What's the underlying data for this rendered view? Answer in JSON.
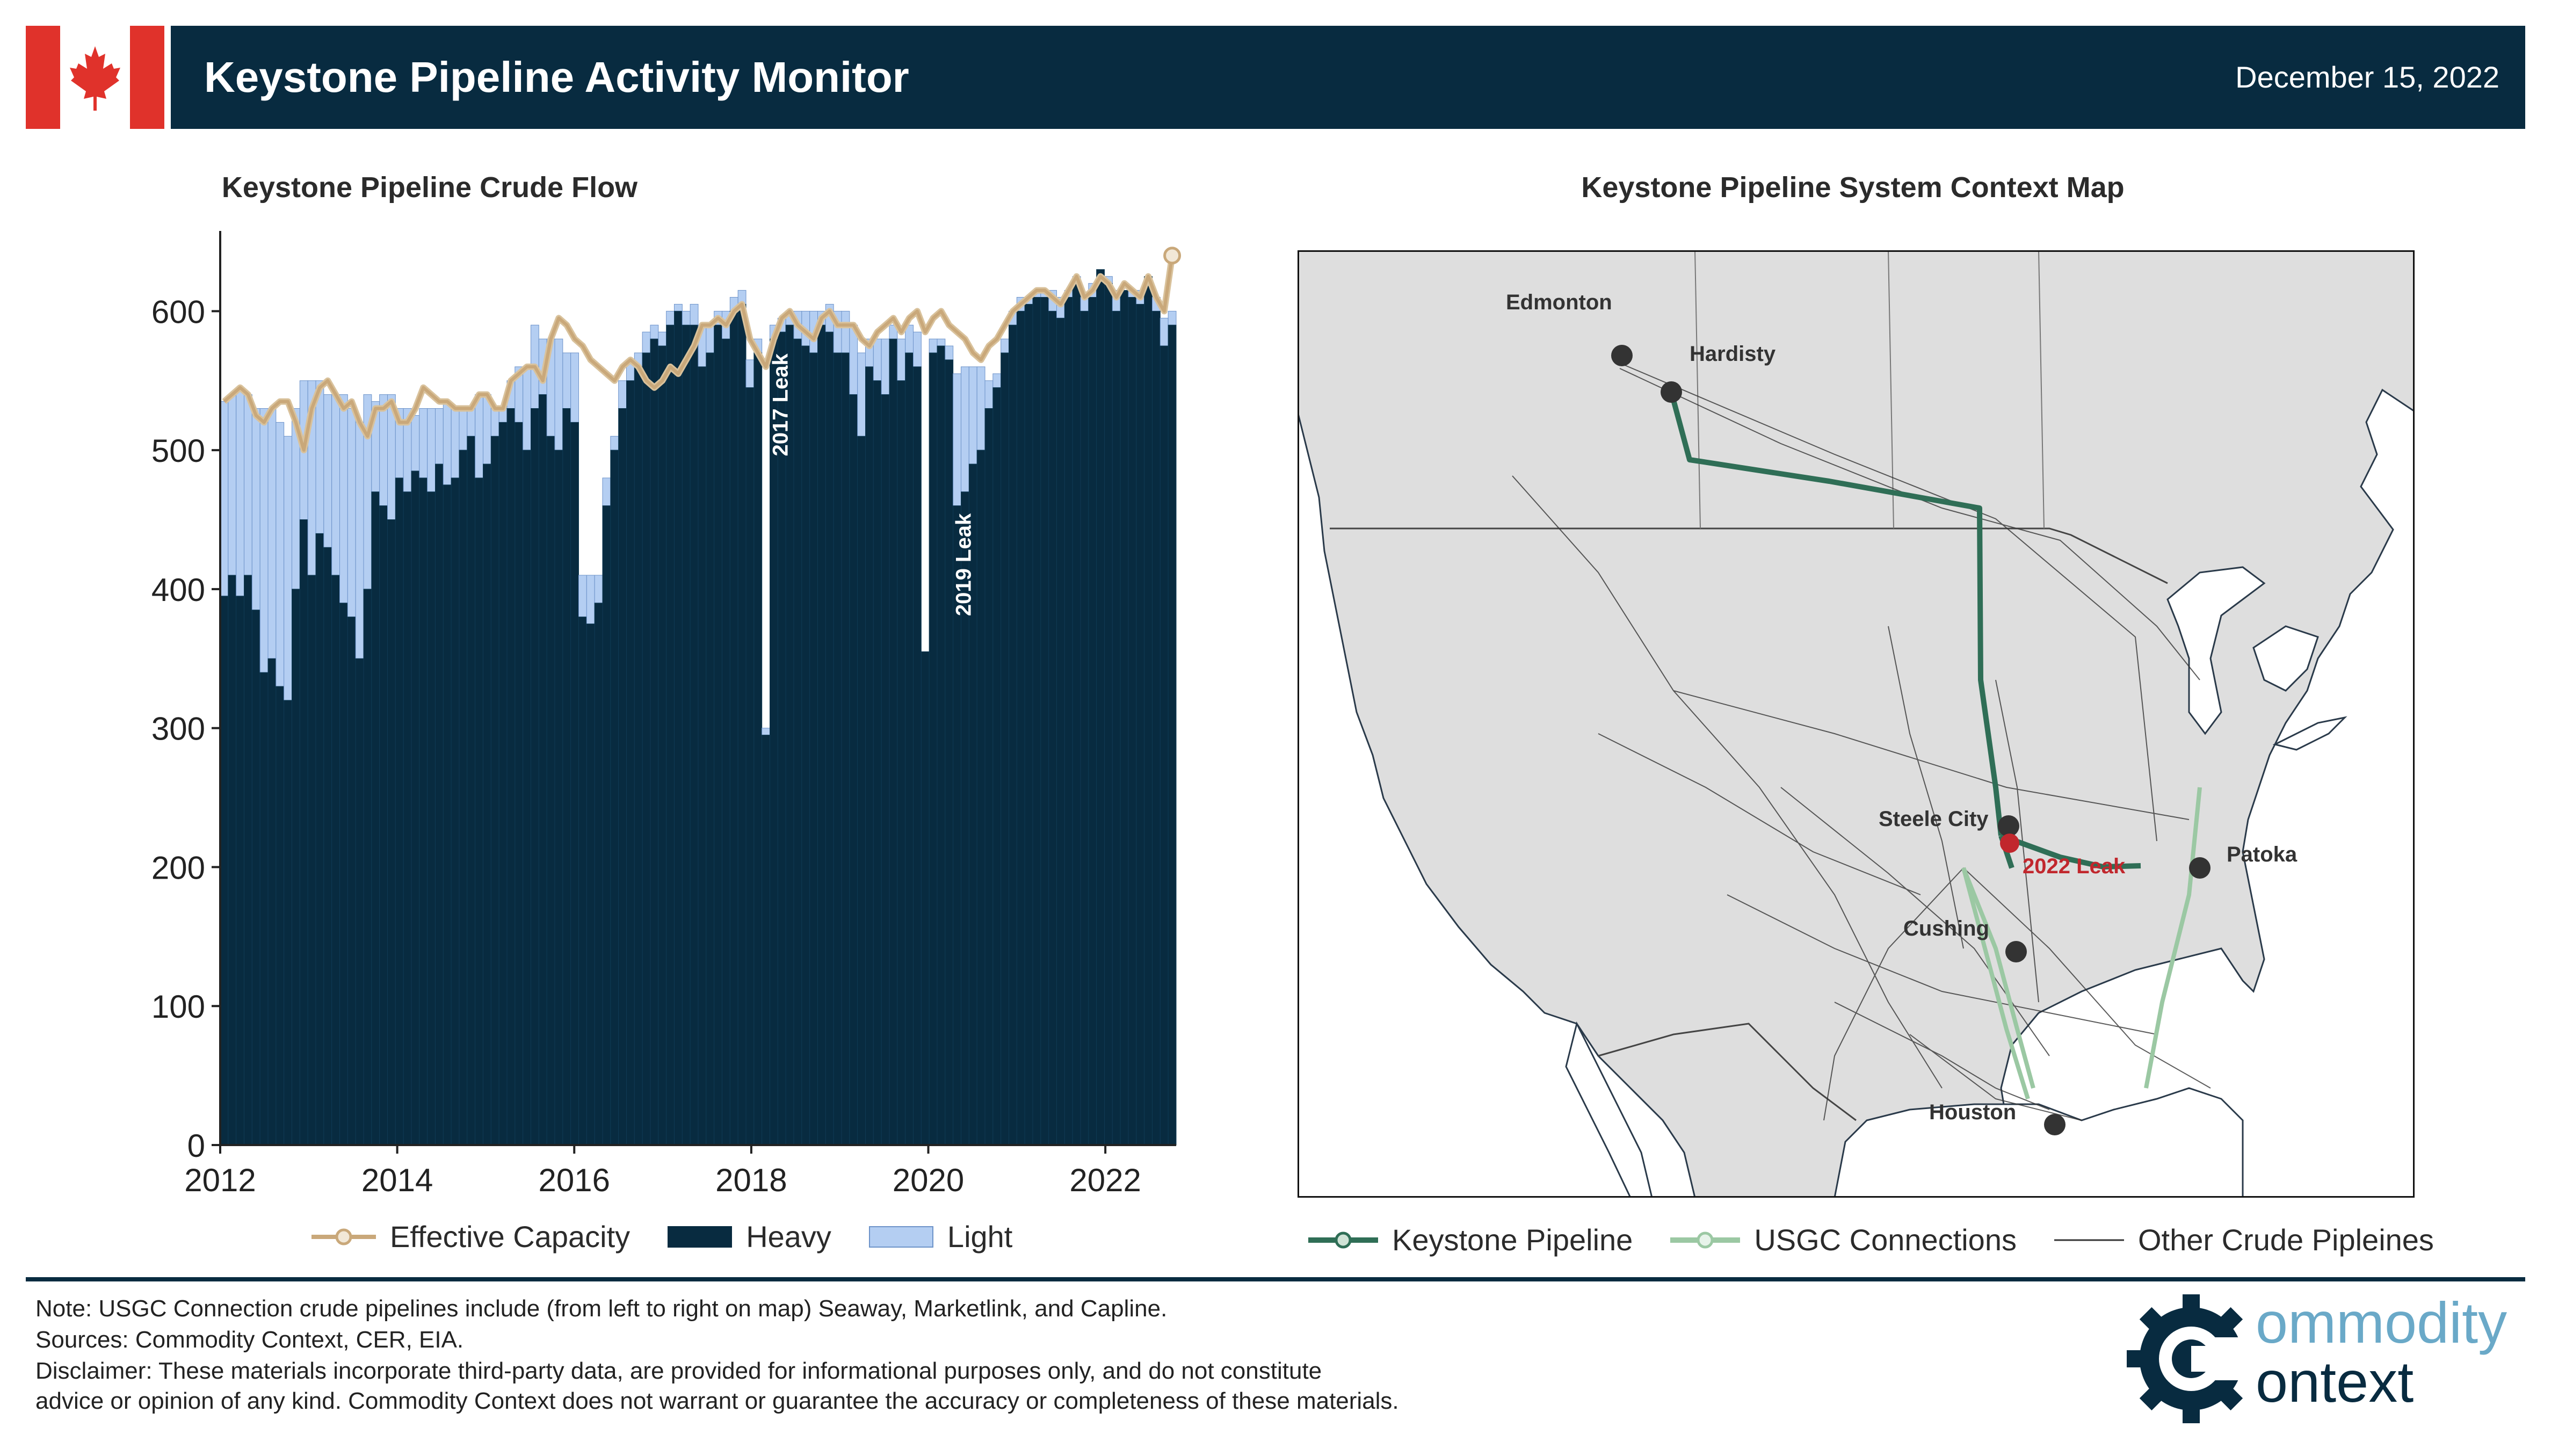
{
  "header": {
    "title": "Keystone Pipeline Activity Monitor",
    "date": "December 15, 2022",
    "colors": {
      "navy": "#082b40",
      "flag_red": "#e0322b"
    }
  },
  "chart_data": [
    {
      "type": "bar",
      "title": "Keystone Pipeline Crude Flow",
      "xlabel": "",
      "ylabel": "",
      "xlim": [
        2012,
        2022.8
      ],
      "ylim": [
        0,
        650
      ],
      "x_ticks": [
        "2012",
        "2014",
        "2016",
        "2018",
        "2020",
        "2022"
      ],
      "y_ticks": [
        "0",
        "100",
        "200",
        "300",
        "400",
        "500",
        "600"
      ],
      "stacked": true,
      "bar_unit": "monthly",
      "start": "2012-01",
      "series": [
        {
          "name": "Heavy",
          "color": "#082b40",
          "values": [
            395,
            410,
            395,
            410,
            385,
            340,
            350,
            330,
            320,
            400,
            450,
            410,
            440,
            430,
            410,
            390,
            380,
            350,
            400,
            470,
            460,
            450,
            480,
            470,
            485,
            480,
            470,
            490,
            475,
            480,
            500,
            510,
            480,
            490,
            510,
            520,
            530,
            520,
            500,
            530,
            540,
            510,
            500,
            530,
            520,
            380,
            375,
            390,
            460,
            500,
            530,
            550,
            560,
            570,
            580,
            575,
            590,
            600,
            590,
            590,
            560,
            570,
            590,
            580,
            600,
            605,
            545,
            570,
            295,
            580,
            585,
            590,
            580,
            575,
            570,
            590,
            585,
            570,
            570,
            540,
            510,
            560,
            550,
            540,
            580,
            550,
            570,
            560,
            355,
            570,
            575,
            565,
            460,
            470,
            490,
            500,
            530,
            545,
            570,
            590,
            600,
            605,
            610,
            610,
            600,
            595,
            610,
            620,
            600,
            610,
            630,
            620,
            600,
            615,
            610,
            605,
            625,
            600,
            575,
            590
          ],
          "base_legend": "Heavy"
        },
        {
          "name": "Light",
          "values": [
            140,
            130,
            150,
            130,
            145,
            190,
            180,
            190,
            190,
            130,
            100,
            140,
            110,
            110,
            130,
            150,
            150,
            170,
            140,
            65,
            80,
            90,
            50,
            60,
            40,
            50,
            60,
            40,
            60,
            50,
            30,
            20,
            60,
            50,
            20,
            10,
            20,
            40,
            60,
            60,
            40,
            70,
            80,
            40,
            50,
            30,
            35,
            20,
            20,
            10,
            20,
            15,
            10,
            15,
            10,
            10,
            10,
            5,
            10,
            15,
            30,
            20,
            10,
            20,
            10,
            10,
            20,
            10,
            5,
            10,
            10,
            10,
            20,
            25,
            30,
            10,
            20,
            30,
            30,
            50,
            60,
            20,
            30,
            40,
            10,
            30,
            20,
            25,
            0,
            10,
            5,
            10,
            95,
            90,
            70,
            60,
            20,
            10,
            10,
            10,
            10,
            5,
            5,
            5,
            15,
            15,
            5,
            5,
            10,
            10,
            0,
            5,
            15,
            0,
            5,
            10,
            0,
            10,
            20,
            10
          ],
          "color": "#b4cef2"
        },
        {
          "name": "Effective Capacity",
          "type": "line",
          "color": "#c9a87a",
          "values": [
            535,
            540,
            545,
            540,
            525,
            520,
            530,
            535,
            535,
            520,
            500,
            530,
            545,
            550,
            540,
            530,
            535,
            520,
            510,
            530,
            530,
            535,
            520,
            520,
            530,
            545,
            540,
            535,
            535,
            530,
            530,
            530,
            540,
            540,
            530,
            530,
            550,
            555,
            560,
            560,
            550,
            580,
            595,
            590,
            580,
            575,
            565,
            560,
            555,
            550,
            560,
            565,
            560,
            550,
            545,
            550,
            560,
            555,
            565,
            575,
            590,
            590,
            595,
            590,
            600,
            605,
            580,
            570,
            560,
            580,
            595,
            600,
            590,
            585,
            580,
            595,
            600,
            590,
            590,
            590,
            580,
            575,
            585,
            590,
            595,
            585,
            595,
            600,
            585,
            595,
            600,
            590,
            585,
            580,
            570,
            565,
            575,
            580,
            590,
            600,
            605,
            610,
            615,
            615,
            610,
            605,
            615,
            625,
            610,
            615,
            625,
            620,
            610,
            620,
            615,
            610,
            625,
            610,
            600,
            640
          ]
        }
      ],
      "annotations": [
        {
          "text": "2017 Leak",
          "x": "2017-11"
        },
        {
          "text": "2019 Leak",
          "x": "2019-10"
        }
      ],
      "legend": [
        "Effective Capacity",
        "Heavy",
        "Light"
      ],
      "legend_position": "bottom"
    },
    {
      "type": "map",
      "title": "Keystone Pipeline System Context Map",
      "places": [
        {
          "name": "Edmonton",
          "kind": "city"
        },
        {
          "name": "Hardisty",
          "kind": "hub"
        },
        {
          "name": "Steele City",
          "kind": "hub"
        },
        {
          "name": "Patoka",
          "kind": "hub"
        },
        {
          "name": "Cushing",
          "kind": "hub"
        },
        {
          "name": "Houston",
          "kind": "hub"
        },
        {
          "name": "2022 Leak",
          "kind": "incident",
          "color": "#c1272d"
        }
      ],
      "legend": [
        {
          "label": "Keystone Pipeline",
          "color": "#2f6e56"
        },
        {
          "label": "USGC Connections",
          "color": "#9bc8a3"
        },
        {
          "label": "Other Crude Pipleines",
          "color": "#333333"
        }
      ],
      "legend_position": "bottom"
    }
  ],
  "footer": {
    "note": "Note: USGC Connection crude pipelines include (from left to right on map) Seaway, Marketlink, and Capline.",
    "sources": "Sources: Commodity Context, CER, EIA.",
    "disclaimer_1": "Disclaimer: These materials incorporate third-party data, are provided for informational purposes only, and do not constitute",
    "disclaimer_2": "advice or opinion of any kind. Commodity Context does not warrant or guarantee the accuracy or completeness of these materials."
  },
  "logo": {
    "word1": "ommodity",
    "word2": "ontext",
    "icon": "gear-c-icon"
  }
}
